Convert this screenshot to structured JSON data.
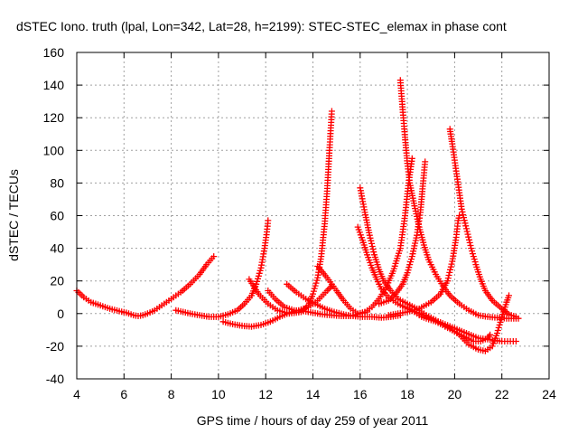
{
  "chart_data": {
    "type": "scatter",
    "title": "dSTEC Iono. truth (lpal, Lon=342, Lat=28, h=2199): STEC-STEC_elemax in phase cont",
    "xlabel": "GPS time / hours of day 259 of year 2011",
    "ylabel": "dSTEC  / TECUs",
    "xlim": [
      4,
      24
    ],
    "ylim": [
      -40,
      160
    ],
    "xticks": [
      4,
      6,
      8,
      10,
      12,
      14,
      16,
      18,
      20,
      22,
      24
    ],
    "yticks": [
      -40,
      -20,
      0,
      20,
      40,
      60,
      80,
      100,
      120,
      140,
      160
    ],
    "grid": true,
    "marker": "+",
    "color": "#ff0000",
    "series": [
      {
        "points": [
          [
            4.0,
            14
          ],
          [
            4.3,
            10
          ],
          [
            4.6,
            7
          ],
          [
            5.0,
            5
          ],
          [
            5.4,
            3
          ],
          [
            5.8,
            1.5
          ],
          [
            6.1,
            0.5
          ],
          [
            6.4,
            -1
          ],
          [
            6.6,
            -1.5
          ],
          [
            6.8,
            -1
          ],
          [
            7.0,
            0
          ],
          [
            7.3,
            2
          ],
          [
            7.6,
            5
          ],
          [
            8.0,
            9
          ],
          [
            8.4,
            13
          ],
          [
            8.8,
            18
          ],
          [
            9.2,
            24
          ],
          [
            9.5,
            30
          ],
          [
            9.8,
            35
          ]
        ]
      },
      {
        "points": [
          [
            8.2,
            2
          ],
          [
            8.5,
            1
          ],
          [
            8.8,
            0
          ],
          [
            9.2,
            -1
          ],
          [
            9.6,
            -2
          ],
          [
            10.0,
            -2
          ],
          [
            10.4,
            -0.5
          ],
          [
            10.8,
            2
          ],
          [
            11.1,
            6
          ],
          [
            11.4,
            11
          ],
          [
            11.6,
            18
          ],
          [
            11.8,
            28
          ],
          [
            11.95,
            40
          ],
          [
            12.05,
            50
          ],
          [
            12.1,
            57
          ]
        ]
      },
      {
        "points": [
          [
            10.2,
            -5
          ],
          [
            10.6,
            -6.5
          ],
          [
            11.0,
            -7.5
          ],
          [
            11.4,
            -8
          ],
          [
            11.8,
            -7
          ],
          [
            12.2,
            -5
          ],
          [
            12.6,
            -2
          ],
          [
            13.0,
            0.5
          ],
          [
            13.4,
            2
          ],
          [
            13.8,
            4
          ],
          [
            14.2,
            8
          ],
          [
            14.6,
            14
          ],
          [
            14.8,
            17
          ]
        ]
      },
      {
        "points": [
          [
            11.3,
            21
          ],
          [
            11.7,
            12
          ],
          [
            12.1,
            6
          ],
          [
            12.5,
            2
          ],
          [
            13.0,
            0
          ],
          [
            13.5,
            1
          ],
          [
            13.8,
            5
          ],
          [
            14.0,
            12
          ],
          [
            14.2,
            22
          ],
          [
            14.35,
            35
          ],
          [
            14.5,
            55
          ],
          [
            14.6,
            75
          ],
          [
            14.7,
            100
          ],
          [
            14.8,
            124
          ]
        ]
      },
      {
        "points": [
          [
            12.1,
            14
          ],
          [
            12.4,
            9
          ],
          [
            12.8,
            4
          ],
          [
            13.2,
            2
          ],
          [
            13.6,
            1.5
          ],
          [
            14.0,
            0.5
          ],
          [
            14.4,
            -0.5
          ],
          [
            14.8,
            -1
          ],
          [
            15.2,
            -1.5
          ],
          [
            15.6,
            -1.5
          ],
          [
            16.0,
            0
          ],
          [
            16.3,
            1
          ]
        ]
      },
      {
        "points": [
          [
            12.9,
            18
          ],
          [
            13.3,
            13
          ],
          [
            13.7,
            9
          ],
          [
            14.1,
            6
          ],
          [
            14.5,
            3
          ],
          [
            14.9,
            1
          ],
          [
            15.3,
            -0.5
          ],
          [
            15.7,
            -1.5
          ],
          [
            16.1,
            -2
          ],
          [
            16.5,
            -2
          ],
          [
            16.9,
            -2.5
          ],
          [
            17.3,
            -2
          ],
          [
            17.7,
            -1
          ]
        ]
      },
      {
        "points": [
          [
            14.2,
            29
          ],
          [
            14.6,
            22
          ],
          [
            15.0,
            14
          ],
          [
            15.3,
            8
          ],
          [
            15.6,
            3
          ],
          [
            15.9,
            0
          ],
          [
            16.2,
            1
          ],
          [
            16.5,
            4
          ],
          [
            16.8,
            9
          ],
          [
            17.1,
            16
          ],
          [
            17.4,
            26
          ],
          [
            17.7,
            40
          ],
          [
            17.9,
            60
          ],
          [
            18.05,
            80
          ],
          [
            18.2,
            95
          ]
        ]
      },
      {
        "points": [
          [
            15.9,
            53
          ],
          [
            16.1,
            45
          ],
          [
            16.3,
            36
          ],
          [
            16.5,
            28
          ],
          [
            16.7,
            21
          ],
          [
            16.9,
            15
          ],
          [
            17.2,
            10
          ],
          [
            17.6,
            6
          ],
          [
            18.0,
            3
          ],
          [
            18.5,
            0
          ],
          [
            19.0,
            -3
          ],
          [
            19.5,
            -6
          ],
          [
            20.0,
            -9
          ],
          [
            20.5,
            -12
          ],
          [
            21.0,
            -15
          ],
          [
            21.5,
            -16
          ],
          [
            22.0,
            -17
          ],
          [
            22.6,
            -17
          ]
        ]
      },
      {
        "points": [
          [
            16.0,
            77
          ],
          [
            16.2,
            62
          ],
          [
            16.4,
            48
          ],
          [
            16.6,
            36
          ],
          [
            16.8,
            27
          ],
          [
            17.0,
            20
          ],
          [
            17.3,
            14
          ],
          [
            17.6,
            9
          ],
          [
            18.0,
            6
          ],
          [
            18.4,
            3
          ],
          [
            18.8,
            -1
          ],
          [
            19.2,
            -4
          ],
          [
            19.6,
            -8
          ],
          [
            20.0,
            -11
          ],
          [
            20.4,
            -14
          ],
          [
            20.8,
            -17
          ],
          [
            21.1,
            -17
          ],
          [
            21.4,
            -15
          ],
          [
            21.5,
            -13
          ]
        ]
      },
      {
        "points": [
          [
            16.8,
            6
          ],
          [
            17.2,
            8
          ],
          [
            17.5,
            12
          ],
          [
            17.8,
            18
          ],
          [
            18.0,
            25
          ],
          [
            18.2,
            35
          ],
          [
            18.4,
            48
          ],
          [
            18.55,
            62
          ],
          [
            18.65,
            78
          ],
          [
            18.75,
            93
          ]
        ]
      },
      {
        "points": [
          [
            17.7,
            143
          ],
          [
            17.8,
            125
          ],
          [
            17.9,
            108
          ],
          [
            18.0,
            92
          ],
          [
            18.1,
            80
          ],
          [
            18.3,
            66
          ],
          [
            18.5,
            53
          ],
          [
            18.7,
            42
          ],
          [
            18.9,
            33
          ],
          [
            19.2,
            24
          ],
          [
            19.5,
            17
          ],
          [
            19.8,
            11
          ],
          [
            20.2,
            6
          ],
          [
            20.6,
            2
          ],
          [
            21.0,
            -1
          ],
          [
            21.4,
            -2
          ],
          [
            21.8,
            -2.5
          ],
          [
            22.2,
            -3
          ],
          [
            22.7,
            -3
          ]
        ]
      },
      {
        "points": [
          [
            17.2,
            -1
          ],
          [
            17.6,
            0
          ],
          [
            18.0,
            1
          ],
          [
            18.5,
            3
          ],
          [
            19.0,
            7
          ],
          [
            19.4,
            12
          ],
          [
            19.7,
            20
          ],
          [
            19.9,
            32
          ],
          [
            20.05,
            45
          ],
          [
            20.15,
            57
          ],
          [
            20.2,
            60
          ]
        ]
      },
      {
        "points": [
          [
            19.8,
            113
          ],
          [
            19.9,
            104
          ],
          [
            20.0,
            94
          ],
          [
            20.1,
            84
          ],
          [
            20.2,
            74
          ],
          [
            20.3,
            64
          ],
          [
            20.5,
            52
          ],
          [
            20.7,
            40
          ],
          [
            20.9,
            30
          ],
          [
            21.1,
            21
          ],
          [
            21.3,
            14
          ],
          [
            21.6,
            8
          ],
          [
            22.0,
            3
          ],
          [
            22.3,
            -0.5
          ],
          [
            22.6,
            -2
          ]
        ]
      },
      {
        "points": [
          [
            18.0,
            4
          ],
          [
            18.6,
            -2
          ],
          [
            19.2,
            -5
          ],
          [
            19.8,
            -9
          ],
          [
            20.2,
            -13
          ],
          [
            20.6,
            -19
          ],
          [
            21.0,
            -22
          ],
          [
            21.3,
            -23
          ],
          [
            21.6,
            -20
          ],
          [
            21.8,
            -12
          ],
          [
            22.0,
            -2
          ],
          [
            22.2,
            7
          ],
          [
            22.3,
            11
          ]
        ]
      }
    ]
  }
}
